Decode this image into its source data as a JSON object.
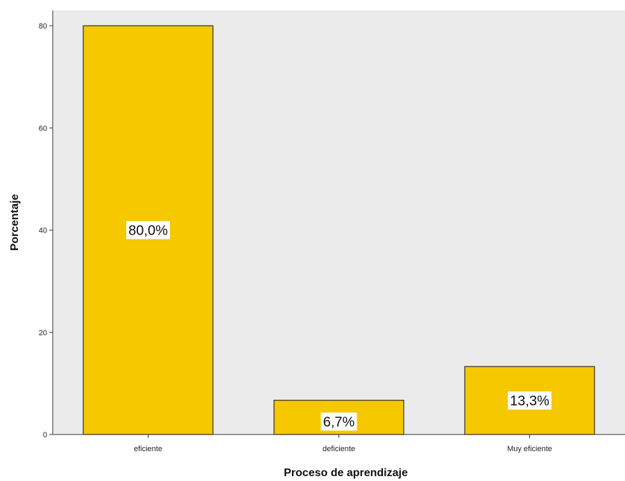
{
  "chart_data": {
    "type": "bar",
    "title": "",
    "xlabel": "Proceso de aprendizaje",
    "ylabel": "Porcentaje",
    "categories": [
      "eficiente",
      "deficiente",
      "Muy eficiente"
    ],
    "values": [
      80.0,
      6.7,
      13.3
    ],
    "data_labels": [
      "80,0%",
      "6,7%",
      "13,3%"
    ],
    "y_ticks": [
      0,
      20,
      40,
      60,
      80
    ],
    "y_tick_labels": [
      "0",
      "20",
      "40",
      "60",
      "80"
    ],
    "ylim": [
      0,
      83
    ],
    "grid": false,
    "legend": "none"
  },
  "colors": {
    "bar_fill": "#F5C800",
    "bar_stroke": "#2b2b2b",
    "plot_background": "#EBEBEB",
    "label_box": "#ffffff"
  }
}
